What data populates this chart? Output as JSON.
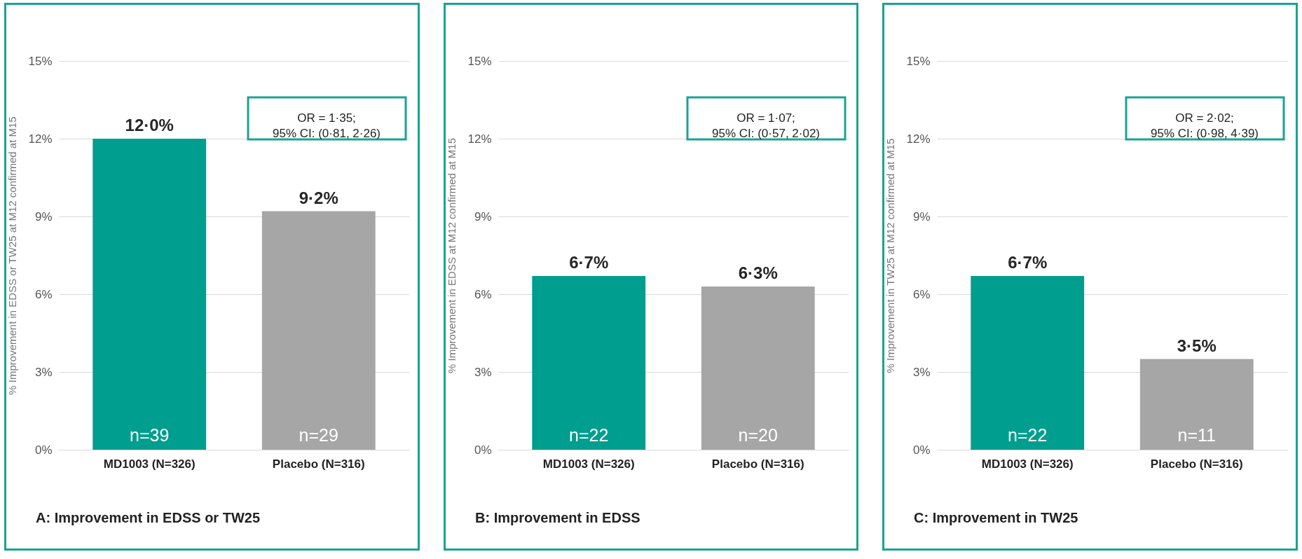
{
  "chart_data": [
    {
      "type": "bar",
      "title": "A: Improvement in EDSS or TW25",
      "ylabel": "% Improvement in EDSS or TW25 at M12 confirmed at M15",
      "categories": [
        "MD1003 (N=326)",
        "Placebo (N=316)"
      ],
      "values": [
        12.0,
        9.2
      ],
      "colors": [
        "#009e8e",
        "#a6a6a6"
      ],
      "value_labels": [
        "12·0%",
        "9·2%"
      ],
      "ylim": [
        0,
        15
      ],
      "yticks": [
        {
          "value": 0,
          "label": "0%"
        },
        {
          "value": 3,
          "label": "3%"
        },
        {
          "value": 6,
          "label": "6%"
        },
        {
          "value": 9,
          "label": "9%"
        },
        {
          "value": 12,
          "label": "12%"
        },
        {
          "value": 15,
          "label": "15%"
        }
      ],
      "grid": "y",
      "annotations": [
        "OR = 1·35;\n95% CI: (0·81, 2·26)",
        {
          "text": "n=39",
          "x": "MD1003 (N=326)",
          "y": 0
        },
        {
          "text": "n=29",
          "x": "Placebo (N=316)",
          "y": 0
        }
      ]
    },
    {
      "type": "bar",
      "title": "B: Improvement in EDSS",
      "ylabel": "% Improvement in EDSS at M12 confirmed at M15",
      "categories": [
        "MD1003 (N=326)",
        "Placebo (N=316)"
      ],
      "values": [
        6.7,
        6.3
      ],
      "colors": [
        "#009e8e",
        "#a6a6a6"
      ],
      "value_labels": [
        "6·7%",
        "6·3%"
      ],
      "ylim": [
        0,
        15
      ],
      "yticks": [
        {
          "value": 0,
          "label": "0%"
        },
        {
          "value": 3,
          "label": "3%"
        },
        {
          "value": 6,
          "label": "6%"
        },
        {
          "value": 9,
          "label": "9%"
        },
        {
          "value": 12,
          "label": "12%"
        },
        {
          "value": 15,
          "label": "15%"
        }
      ],
      "grid": "y",
      "annotations": [
        "OR = 1·07;\n95% CI: (0·57, 2·02)",
        {
          "text": "n=22",
          "x": "MD1003 (N=326)",
          "y": 0
        },
        {
          "text": "n=20",
          "x": "Placebo (N=316)",
          "y": 0
        }
      ]
    },
    {
      "type": "bar",
      "title": "C: Improvement in TW25",
      "ylabel": "% Improvement in TW25 at M12 confirmed at M15",
      "categories": [
        "MD1003 (N=326)",
        "Placebo (N=316)"
      ],
      "values": [
        6.7,
        3.5
      ],
      "colors": [
        "#009e8e",
        "#a6a6a6"
      ],
      "value_labels": [
        "6·7%",
        "3·5%"
      ],
      "ylim": [
        0,
        15
      ],
      "yticks": [
        {
          "value": 0,
          "label": "0%"
        },
        {
          "value": 3,
          "label": "3%"
        },
        {
          "value": 6,
          "label": "6%"
        },
        {
          "value": 9,
          "label": "9%"
        },
        {
          "value": 12,
          "label": "12%"
        },
        {
          "value": 15,
          "label": "15%"
        }
      ],
      "grid": "y",
      "annotations": [
        "OR = 2·02;\n95% CI: (0·98, 4·39)",
        {
          "text": "n=22",
          "x": "MD1003 (N=326)",
          "y": 0
        },
        {
          "text": "n=11",
          "x": "Placebo (N=316)",
          "y": 0
        }
      ]
    }
  ]
}
